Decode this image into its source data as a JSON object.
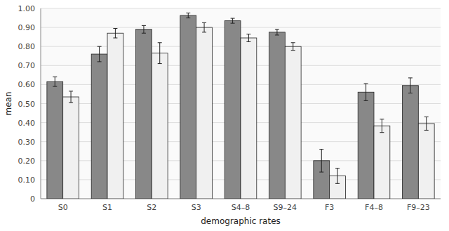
{
  "chart_data": {
    "type": "bar",
    "xlabel": "demographic rates",
    "ylabel": "mean",
    "categories": [
      "S0",
      "S1",
      "S2",
      "S3",
      "S4–8",
      "S9–24",
      "F3",
      "F4–8",
      "F9–23"
    ],
    "series": [
      {
        "color": "#888888",
        "values": [
          0.615,
          0.76,
          0.89,
          0.963,
          0.935,
          0.875,
          0.2,
          0.56,
          0.595
        ],
        "errors": [
          0.025,
          0.04,
          0.02,
          0.013,
          0.013,
          0.015,
          0.06,
          0.045,
          0.04
        ]
      },
      {
        "color": "#f0f0f0",
        "values": [
          0.535,
          0.87,
          0.765,
          0.9,
          0.845,
          0.8,
          0.12,
          0.383,
          0.395
        ],
        "errors": [
          0.03,
          0.025,
          0.055,
          0.025,
          0.02,
          0.02,
          0.04,
          0.035,
          0.035
        ]
      }
    ],
    "ylim": [
      0,
      1.0
    ],
    "yticks": [
      0,
      {
        "value": 0.1,
        "label": "0.10"
      },
      {
        "value": 0.2,
        "label": "0.20"
      },
      {
        "value": 0.3,
        "label": "0.30"
      },
      {
        "value": 0.4,
        "label": "0.40"
      },
      {
        "value": 0.5,
        "label": "0.50"
      },
      {
        "value": 0.6,
        "label": "0.60"
      },
      {
        "value": 0.7,
        "label": "0.70"
      },
      {
        "value": 0.8,
        "label": "0.80"
      },
      {
        "value": 0.9,
        "label": "0.90"
      },
      {
        "value": 1,
        "label": "1.00"
      }
    ],
    "grid": true
  }
}
